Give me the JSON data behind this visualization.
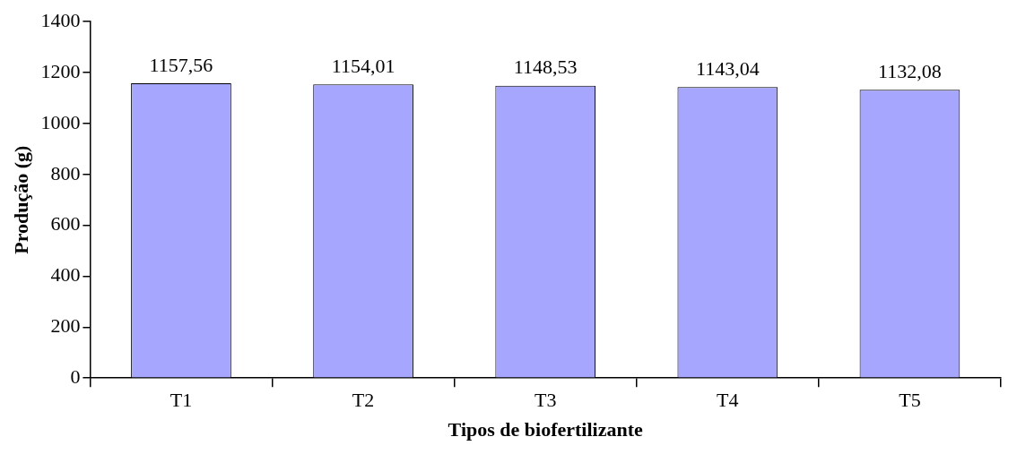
{
  "chart_data": {
    "type": "bar",
    "xlabel": "Tipos de biofertilizante",
    "ylabel": "Produção (g)",
    "categories": [
      "T1",
      "T2",
      "T3",
      "T4",
      "T5"
    ],
    "values": [
      1157.56,
      1154.01,
      1148.53,
      1143.04,
      1132.08
    ],
    "value_labels": [
      "1157,56",
      "1154,01",
      "1148,53",
      "1143,04",
      "1132,08"
    ],
    "color": "#a6a6ff",
    "ylim": [
      0,
      1400
    ],
    "yticks": [
      0,
      200,
      400,
      600,
      800,
      1000,
      1200,
      1400
    ],
    "grid": false,
    "legend": false
  }
}
